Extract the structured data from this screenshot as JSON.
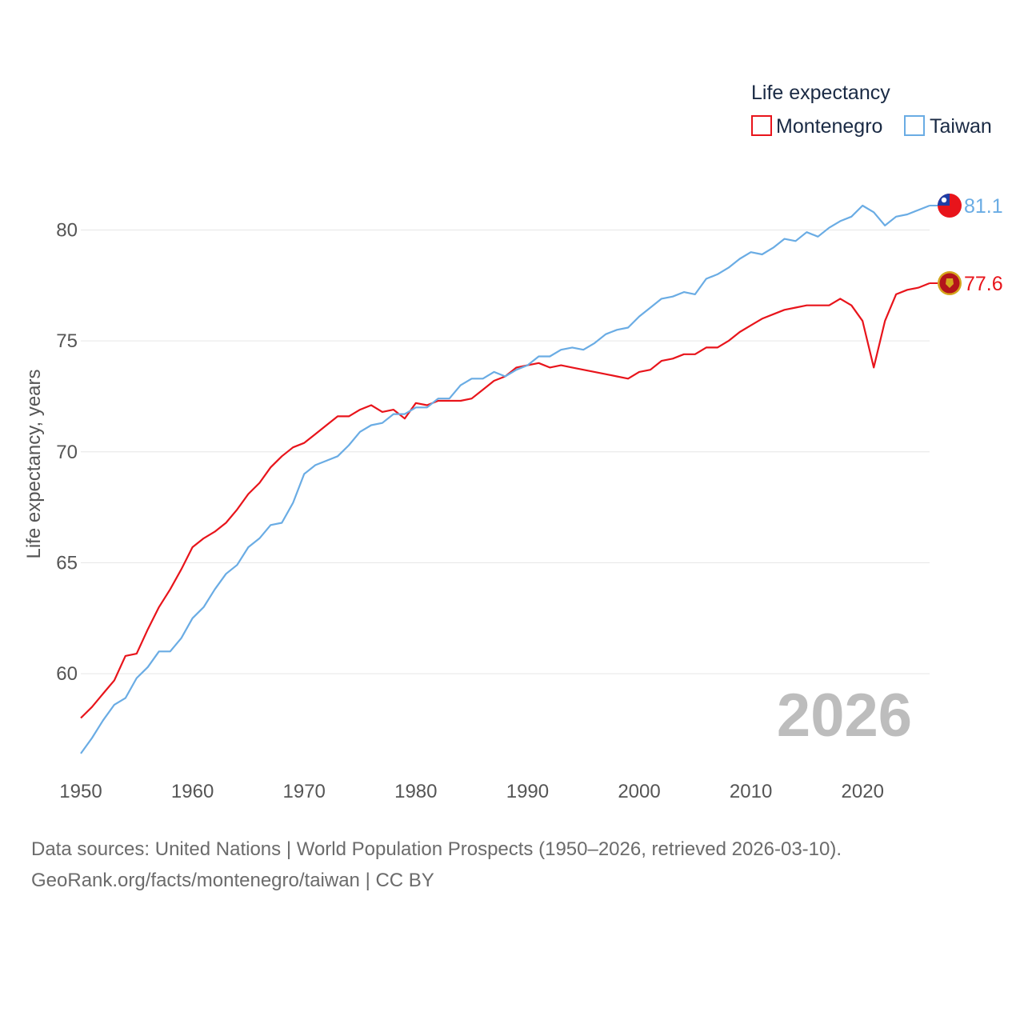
{
  "chart_data": {
    "type": "line",
    "ylabel": "Life expectancy, years",
    "legend_title": "Life expectancy",
    "legend_position": "top-right",
    "year_label": "2026",
    "xlim": [
      1950,
      2026
    ],
    "ylim": [
      56,
      82
    ],
    "x_ticks": [
      1950,
      1960,
      1970,
      1980,
      1990,
      2000,
      2010,
      2020
    ],
    "y_ticks": [
      60,
      65,
      70,
      75,
      80
    ],
    "grid": true,
    "x": [
      1950,
      1951,
      1952,
      1953,
      1954,
      1955,
      1956,
      1957,
      1958,
      1959,
      1960,
      1961,
      1962,
      1963,
      1964,
      1965,
      1966,
      1967,
      1968,
      1969,
      1970,
      1971,
      1972,
      1973,
      1974,
      1975,
      1976,
      1977,
      1978,
      1979,
      1980,
      1981,
      1982,
      1983,
      1984,
      1985,
      1986,
      1987,
      1988,
      1989,
      1990,
      1991,
      1992,
      1993,
      1994,
      1995,
      1996,
      1997,
      1998,
      1999,
      2000,
      2001,
      2002,
      2003,
      2004,
      2005,
      2006,
      2007,
      2008,
      2009,
      2010,
      2011,
      2012,
      2013,
      2014,
      2015,
      2016,
      2017,
      2018,
      2019,
      2020,
      2021,
      2022,
      2023,
      2024,
      2025,
      2026
    ],
    "series": [
      {
        "name": "Montenegro",
        "color": "#e8141b",
        "end_label": "77.6",
        "flag_icon": "montenegro-flag-icon",
        "values": [
          58.0,
          58.5,
          59.1,
          59.7,
          60.8,
          60.9,
          62.0,
          63.0,
          63.8,
          64.7,
          65.7,
          66.1,
          66.4,
          66.8,
          67.4,
          68.1,
          68.6,
          69.3,
          69.8,
          70.2,
          70.4,
          70.8,
          71.2,
          71.6,
          71.6,
          71.9,
          72.1,
          71.8,
          71.9,
          71.5,
          72.2,
          72.1,
          72.3,
          72.3,
          72.3,
          72.4,
          72.8,
          73.2,
          73.4,
          73.8,
          73.9,
          74.0,
          73.8,
          73.9,
          73.8,
          73.7,
          73.6,
          73.5,
          73.4,
          73.3,
          73.6,
          73.7,
          74.1,
          74.2,
          74.4,
          74.4,
          74.7,
          74.7,
          75.0,
          75.4,
          75.7,
          76.0,
          76.2,
          76.4,
          76.5,
          76.6,
          76.6,
          76.6,
          76.9,
          76.6,
          75.9,
          73.8,
          75.9,
          77.1,
          77.3,
          77.4,
          77.6
        ]
      },
      {
        "name": "Taiwan",
        "color": "#6aace4",
        "end_label": "81.1",
        "flag_icon": "taiwan-flag-icon",
        "values": [
          56.4,
          57.1,
          57.9,
          58.6,
          58.9,
          59.8,
          60.3,
          61.0,
          61.0,
          61.6,
          62.5,
          63.0,
          63.8,
          64.5,
          64.9,
          65.7,
          66.1,
          66.7,
          66.8,
          67.7,
          69.0,
          69.4,
          69.6,
          69.8,
          70.3,
          70.9,
          71.2,
          71.3,
          71.7,
          71.7,
          72.0,
          72.0,
          72.4,
          72.4,
          73.0,
          73.3,
          73.3,
          73.6,
          73.4,
          73.7,
          73.9,
          74.3,
          74.3,
          74.6,
          74.7,
          74.6,
          74.9,
          75.3,
          75.5,
          75.6,
          76.1,
          76.5,
          76.9,
          77.0,
          77.2,
          77.1,
          77.8,
          78.0,
          78.3,
          78.7,
          79.0,
          78.9,
          79.2,
          79.6,
          79.5,
          79.9,
          79.7,
          80.1,
          80.4,
          80.6,
          81.1,
          80.8,
          80.2,
          80.6,
          80.7,
          80.9,
          81.1
        ]
      }
    ]
  },
  "footer": {
    "line1": "Data sources: United Nations | World Population Prospects (1950–2026, retrieved 2026-03-10).",
    "line2": "GeoRank.org/facts/montenegro/taiwan | CC BY"
  }
}
